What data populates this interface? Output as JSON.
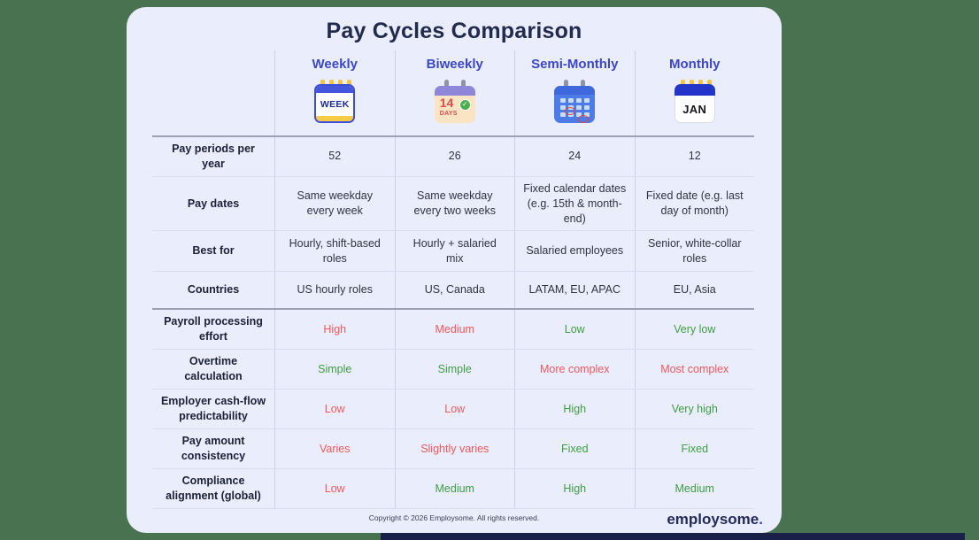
{
  "title": "Pay Cycles Comparison",
  "colors": {
    "page_background": "#497251",
    "card_background": "#EAEDFB",
    "title_navy": "#222B4E",
    "header_blue": "#3B46C9",
    "positive_green": "#3F9E44",
    "negative_red": "#F4575C"
  },
  "columns": [
    {
      "label": "Weekly",
      "icon": "weekly-calendar-icon",
      "icon_text": "WEEK"
    },
    {
      "label": "Biweekly",
      "icon": "biweekly-calendar-icon",
      "icon_number": "14",
      "icon_days": "DAYS"
    },
    {
      "label": "Semi-Monthly",
      "icon": "semimonthly-calendar-icon"
    },
    {
      "label": "Monthly",
      "icon": "monthly-calendar-icon",
      "icon_text": "JAN"
    }
  ],
  "rows": [
    {
      "label": "Pay periods per year",
      "divider_above": true,
      "cells": [
        {
          "text": "52",
          "tone": "neutral"
        },
        {
          "text": "26",
          "tone": "neutral"
        },
        {
          "text": "24",
          "tone": "neutral"
        },
        {
          "text": "12",
          "tone": "neutral"
        }
      ]
    },
    {
      "label": "Pay dates",
      "divider_above": false,
      "cells": [
        {
          "text": "Same weekday every week",
          "tone": "neutral"
        },
        {
          "text": "Same weekday every two weeks",
          "tone": "neutral"
        },
        {
          "text": "Fixed calendar dates (e.g. 15th & month-end)",
          "tone": "neutral"
        },
        {
          "text": "Fixed date (e.g. last day of month)",
          "tone": "neutral"
        }
      ]
    },
    {
      "label": "Best for",
      "divider_above": false,
      "cells": [
        {
          "text": "Hourly, shift-based roles",
          "tone": "neutral"
        },
        {
          "text": "Hourly + salaried mix",
          "tone": "neutral"
        },
        {
          "text": "Salaried employees",
          "tone": "neutral"
        },
        {
          "text": "Senior, white-collar roles",
          "tone": "neutral"
        }
      ]
    },
    {
      "label": "Countries",
      "divider_above": false,
      "cells": [
        {
          "text": "US hourly roles",
          "tone": "neutral"
        },
        {
          "text": "US, Canada",
          "tone": "neutral"
        },
        {
          "text": "LATAM, EU, APAC",
          "tone": "neutral"
        },
        {
          "text": "EU, Asia",
          "tone": "neutral"
        }
      ]
    },
    {
      "label": "Payroll processing effort",
      "divider_above": true,
      "cells": [
        {
          "text": "High",
          "tone": "red"
        },
        {
          "text": "Medium",
          "tone": "red"
        },
        {
          "text": "Low",
          "tone": "green"
        },
        {
          "text": "Very low",
          "tone": "green"
        }
      ]
    },
    {
      "label": "Overtime calculation",
      "divider_above": false,
      "cells": [
        {
          "text": "Simple",
          "tone": "green"
        },
        {
          "text": "Simple",
          "tone": "green"
        },
        {
          "text": "More complex",
          "tone": "red"
        },
        {
          "text": "Most complex",
          "tone": "red"
        }
      ]
    },
    {
      "label": "Employer cash-flow predictability",
      "divider_above": false,
      "cells": [
        {
          "text": "Low",
          "tone": "red"
        },
        {
          "text": "Low",
          "tone": "red"
        },
        {
          "text": "High",
          "tone": "green"
        },
        {
          "text": "Very high",
          "tone": "green"
        }
      ]
    },
    {
      "label": "Pay amount consistency",
      "divider_above": false,
      "cells": [
        {
          "text": "Varies",
          "tone": "red"
        },
        {
          "text": "Slightly varies",
          "tone": "red"
        },
        {
          "text": "Fixed",
          "tone": "green"
        },
        {
          "text": "Fixed",
          "tone": "green"
        }
      ]
    },
    {
      "label": "Compliance alignment (global)",
      "divider_above": false,
      "cells": [
        {
          "text": "Low",
          "tone": "red"
        },
        {
          "text": "Medium",
          "tone": "green"
        },
        {
          "text": "High",
          "tone": "green"
        },
        {
          "text": "Medium",
          "tone": "green"
        }
      ]
    }
  ],
  "footer": {
    "copyright": "Copyright © 2026 Employsome. All rights reserved.",
    "brand": "employsome",
    "brand_dot": "."
  }
}
